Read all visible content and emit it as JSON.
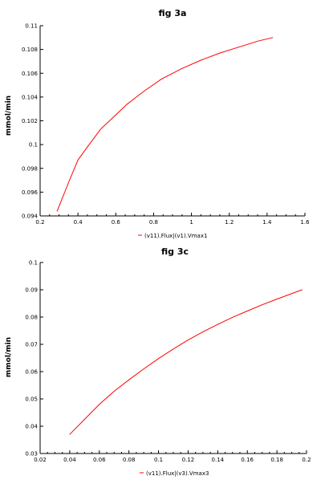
{
  "chart_data": [
    {
      "type": "line",
      "title": "fig 3a",
      "xlabel": "",
      "ylabel": "mmol/min",
      "xlim": [
        0.2,
        1.6
      ],
      "ylim": [
        0.094,
        0.11
      ],
      "xticks": [
        "0.2",
        "0.4",
        "0.6",
        "0.8",
        "1",
        "1.2",
        "1.4",
        "1.6"
      ],
      "yticks": [
        "0.094",
        "0.096",
        "0.098",
        "0.1",
        "0.102",
        "0.104",
        "0.106",
        "0.108",
        "0.11"
      ],
      "series": [
        {
          "name": "(v11).Flux|(v1).Vmax1",
          "color": "#ff0000",
          "x": [
            0.29,
            0.35,
            0.4,
            0.45,
            0.52,
            0.6,
            0.66,
            0.75,
            0.84,
            0.95,
            1.05,
            1.15,
            1.25,
            1.35,
            1.43
          ],
          "y": [
            0.0944,
            0.0968,
            0.0987,
            0.0998,
            0.1013,
            0.1025,
            0.1034,
            0.1045,
            0.1055,
            0.1064,
            0.1071,
            0.1077,
            0.1082,
            0.1087,
            0.109
          ]
        }
      ]
    },
    {
      "type": "line",
      "title": "fig 3c",
      "xlabel": "",
      "ylabel": "mmol/min",
      "xlim": [
        0.02,
        0.2
      ],
      "ylim": [
        0.03,
        0.1
      ],
      "xticks": [
        "0.02",
        "0.04",
        "0.06",
        "0.08",
        "0.1",
        "0.12",
        "0.14",
        "0.16",
        "0.18",
        "0.2"
      ],
      "yticks": [
        "0.03",
        "0.04",
        "0.05",
        "0.06",
        "0.07",
        "0.08",
        "0.09",
        "0.1"
      ],
      "series": [
        {
          "name": "(v11).Flux|(v3).Vmax3",
          "color": "#ff0000",
          "x": [
            0.04,
            0.05,
            0.06,
            0.07,
            0.08,
            0.09,
            0.1,
            0.11,
            0.12,
            0.13,
            0.14,
            0.15,
            0.16,
            0.17,
            0.18,
            0.197
          ],
          "y": [
            0.037,
            0.0425,
            0.048,
            0.0528,
            0.057,
            0.061,
            0.0648,
            0.0683,
            0.0716,
            0.0746,
            0.0773,
            0.0799,
            0.0822,
            0.0845,
            0.0866,
            0.09
          ]
        }
      ]
    }
  ]
}
